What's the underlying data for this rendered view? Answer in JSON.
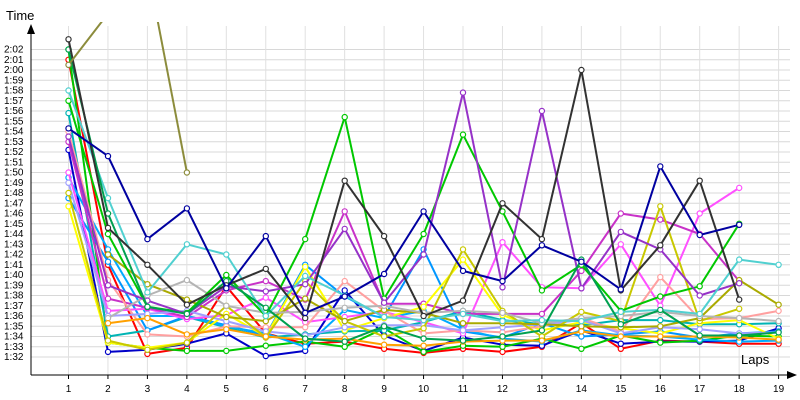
{
  "chart_data": {
    "type": "line",
    "ylabel": "Time",
    "xlabel": "Laps",
    "x": [
      1,
      2,
      3,
      4,
      5,
      6,
      7,
      8,
      9,
      10,
      11,
      12,
      13,
      14,
      15,
      16,
      17,
      18,
      19
    ],
    "xlim": [
      0,
      19.5
    ],
    "ylim": [
      89,
      126
    ],
    "yticks": [
      "1:32",
      "1:33",
      "1:34",
      "1:35",
      "1:36",
      "1:37",
      "1:38",
      "1:39",
      "1:40",
      "1:41",
      "1:42",
      "1:43",
      "1:44",
      "1:45",
      "1:46",
      "1:47",
      "1:48",
      "1:49",
      "1:50",
      "1:51",
      "1:52",
      "1:53",
      "1:54",
      "1:55",
      "1:56",
      "1:57",
      "1:58",
      "1:59",
      "2:00",
      "2:01",
      "2:02"
    ],
    "grid": true,
    "series": [
      {
        "color": "#ff0000",
        "values": [
          121.0,
          101.0,
          92.3,
          92.9,
          98.9,
          94.3,
          93.3,
          93.5,
          92.8,
          92.4,
          92.8,
          92.5,
          93.0,
          95.3,
          92.8,
          93.6,
          93.5,
          93.3,
          93.3
        ]
      },
      {
        "color": "#0000c8",
        "values": [
          112.2,
          92.5,
          92.7,
          93.3,
          94.3,
          92.1,
          92.6,
          98.5,
          94.1,
          92.6,
          93.9,
          93.2,
          93.1,
          94.6,
          93.3,
          93.5,
          93.5,
          93.6,
          94.8
        ]
      },
      {
        "color": "#00c800",
        "values": [
          122.0,
          93.4,
          92.9,
          92.6,
          92.6,
          93.1,
          93.5,
          93.0,
          94.8,
          92.5,
          93.1,
          93.0,
          93.8,
          92.8,
          94.1,
          93.4,
          93.6,
          94.1,
          94.0
        ]
      },
      {
        "color": "#00b4b4",
        "values": [
          115.8,
          94.0,
          94.6,
          95.9,
          94.9,
          93.9,
          94.2,
          94.5,
          94.6,
          95.4,
          96.5,
          95.6,
          95.2,
          95.1,
          95.6,
          95.6,
          95.2,
          95.2,
          95.3
        ]
      },
      {
        "color": "#0096ff",
        "values": [
          107.5,
          101.3,
          94.6,
          96.0,
          95.1,
          94.1,
          101.0,
          97.9,
          95.9,
          102.5,
          94.5,
          93.9,
          95.3,
          94.0,
          94.2,
          94.5,
          93.9,
          94.3,
          94.5
        ]
      },
      {
        "color": "#00aaff",
        "values": [
          109.5,
          102.5,
          96.0,
          96.0,
          95.0,
          94.3,
          93.0,
          96.6,
          95.8,
          96.5,
          94.7,
          93.8,
          93.5,
          94.6,
          94.1,
          94.0,
          93.7,
          93.5,
          93.6
        ]
      },
      {
        "color": "#ff50ff",
        "values": [
          110.0,
          96.5,
          96.7,
          95.7,
          96.1,
          97.8,
          95.4,
          95.9,
          96.4,
          95.4,
          94.3,
          103.2,
          98.8,
          98.7,
          103.0,
          97.0,
          106.0,
          108.5,
          null
        ]
      },
      {
        "color": "#c832c8",
        "values": [
          113.0,
          97.7,
          96.8,
          95.9,
          98.5,
          99.4,
          97.6,
          106.2,
          97.2,
          97.2,
          96.2,
          96.2,
          96.2,
          100.4,
          106.0,
          105.4,
          104.0,
          99.4,
          null
        ]
      },
      {
        "color": "#ffff00",
        "values": [
          106.7,
          93.4,
          92.9,
          93.4,
          96.2,
          94.0,
          100.8,
          94.6,
          95.8,
          96.9,
          101.5,
          96.1,
          94.6,
          95.4,
          94.8,
          94.3,
          95.3,
          95.6,
          93.8
        ]
      },
      {
        "color": "#ffa0a0",
        "values": [
          114.0,
          99.5,
          94.2,
          94.0,
          95.0,
          94.9,
          94.9,
          99.4,
          96.5,
          94.3,
          94.6,
          94.4,
          95.0,
          95.8,
          94.5,
          99.8,
          95.7,
          95.8,
          96.5
        ]
      },
      {
        "color": "#a0a0ff",
        "values": [
          109.0,
          96.0,
          96.2,
          96.5,
          95.5,
          94.5,
          94.1,
          94.9,
          95.1,
          95.1,
          94.6,
          94.9,
          95.2,
          95.6,
          94.3,
          94.9,
          94.7,
          94.3,
          94.4
        ]
      },
      {
        "color": "#c8c800",
        "values": [
          108.0,
          93.6,
          92.7,
          93.4,
          97.0,
          93.9,
          99.4,
          95.5,
          94.0,
          94.8,
          102.5,
          96.5,
          94.0,
          96.4,
          95.5,
          106.7,
          95.5,
          96.7,
          null
        ]
      },
      {
        "color": "#aaaa00",
        "values": [
          null,
          102.0,
          99.1,
          97.6,
          95.9,
          95.5,
          97.7,
          95.5,
          96.6,
          96.3,
          95.3,
          95.3,
          95.2,
          95.0,
          94.9,
          95.0,
          95.8,
          99.5,
          97.1
        ]
      },
      {
        "color": "#b4b4b4",
        "values": [
          null,
          95.8,
          98.0,
          99.5,
          97.0,
          96.3,
          96.4,
          96.8,
          97.0,
          96.3,
          96.5,
          96.3,
          95.3,
          95.8,
          96.0,
          96.4,
          96.0,
          95.8,
          95.5
        ]
      },
      {
        "color": "#ff0000",
        "values": [
          null,
          null,
          null,
          null,
          null,
          null,
          null,
          null,
          null,
          null,
          null,
          null,
          null,
          null,
          null,
          null,
          null,
          null,
          null
        ]
      },
      {
        "color": "#ffa000",
        "values": [
          null,
          95.3,
          95.8,
          94.2,
          94.7,
          94.0,
          93.7,
          93.8,
          93.2,
          93.1,
          93.5,
          93.6,
          93.6,
          94.5,
          94.0,
          94.0,
          94.0,
          93.9,
          93.7
        ]
      },
      {
        "color": "#00c800",
        "values": [
          117.0,
          104.0,
          96.9,
          96.3,
          100.0,
          96.0,
          103.5,
          115.4,
          97.7,
          104.0,
          113.7,
          106.2,
          98.5,
          101.0,
          96.5,
          97.9,
          98.9,
          105.0,
          null
        ]
      },
      {
        "color": "#9632c8",
        "values": [
          113.5,
          99.0,
          97.5,
          96.2,
          98.9,
          98.4,
          99.1,
          104.5,
          97.3,
          102.0,
          117.8,
          98.8,
          116.0,
          98.7,
          104.2,
          102.5,
          98.0,
          99.2,
          null
        ]
      },
      {
        "color": "#50d0d0",
        "values": [
          118.0,
          107.5,
          98.3,
          103.0,
          102.0,
          96.0,
          99.9,
          98.0,
          95.9,
          95.6,
          96.2,
          95.5,
          95.6,
          95.5,
          96.4,
          96.6,
          96.2,
          101.5,
          101.0
        ]
      },
      {
        "color": "#00a050",
        "values": [
          122.0,
          106.0,
          96.9,
          96.2,
          99.4,
          96.8,
          93.8,
          93.5,
          95.0,
          93.8,
          93.6,
          94.0,
          94.6,
          101.5,
          95.2,
          96.6,
          94.1,
          94.1,
          94.4
        ]
      },
      {
        "color": "#323232",
        "values": [
          123.0,
          104.6,
          101.0,
          97.1,
          99.0,
          100.6,
          95.8,
          109.2,
          103.8,
          96.0,
          97.5,
          107.0,
          103.5,
          120.0,
          98.5,
          102.9,
          109.2,
          97.6,
          null
        ]
      },
      {
        "color": "#0000a0",
        "values": [
          114.3,
          111.6,
          103.5,
          106.5,
          98.7,
          103.8,
          96.3,
          97.9,
          100.1,
          106.2,
          100.4,
          99.4,
          102.9,
          101.3,
          98.6,
          110.6,
          103.9,
          104.9,
          null
        ]
      },
      {
        "color": "#8c8c3c",
        "values": [
          120.5,
          125.5,
          null,
          null,
          null,
          null,
          null,
          null,
          null,
          null,
          null,
          null,
          null,
          null,
          null,
          null,
          null,
          null,
          null
        ]
      },
      {
        "color": "#8c8c3c",
        "values": [
          null,
          null,
          130.0,
          110.0,
          null,
          null,
          null,
          null,
          null,
          null,
          null,
          null,
          null,
          null,
          null,
          null,
          null,
          null,
          null
        ]
      }
    ]
  }
}
